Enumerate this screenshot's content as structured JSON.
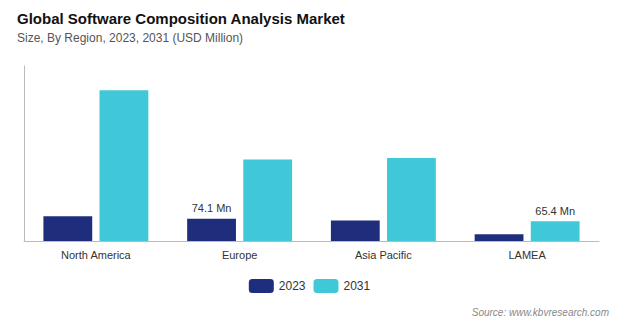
{
  "chart_data": {
    "type": "bar",
    "title": "Global Software Composition Analysis Market",
    "subtitle": "Size, By Region, 2023, 2031 (USD Million)",
    "source": "Source: www.kbvresearch.com",
    "categories": [
      "North America",
      "Europe",
      "Asia Pacific",
      "LAMEA"
    ],
    "series": [
      {
        "name": "2023",
        "color": "#1f2d7d",
        "values": [
          82,
          74.1,
          68,
          22
        ]
      },
      {
        "name": "2031",
        "color": "#40c8d8",
        "values": [
          500,
          270,
          275,
          65.4
        ]
      }
    ],
    "annotations": [
      {
        "text": "74.1 Mn",
        "category": "Europe",
        "series": "2023"
      },
      {
        "text": "65.4 Mn",
        "category": "LAMEA",
        "series": "2031"
      }
    ],
    "ylim": [
      0,
      580
    ],
    "grid": false,
    "legend": "bottom",
    "tick_labels": "x"
  }
}
